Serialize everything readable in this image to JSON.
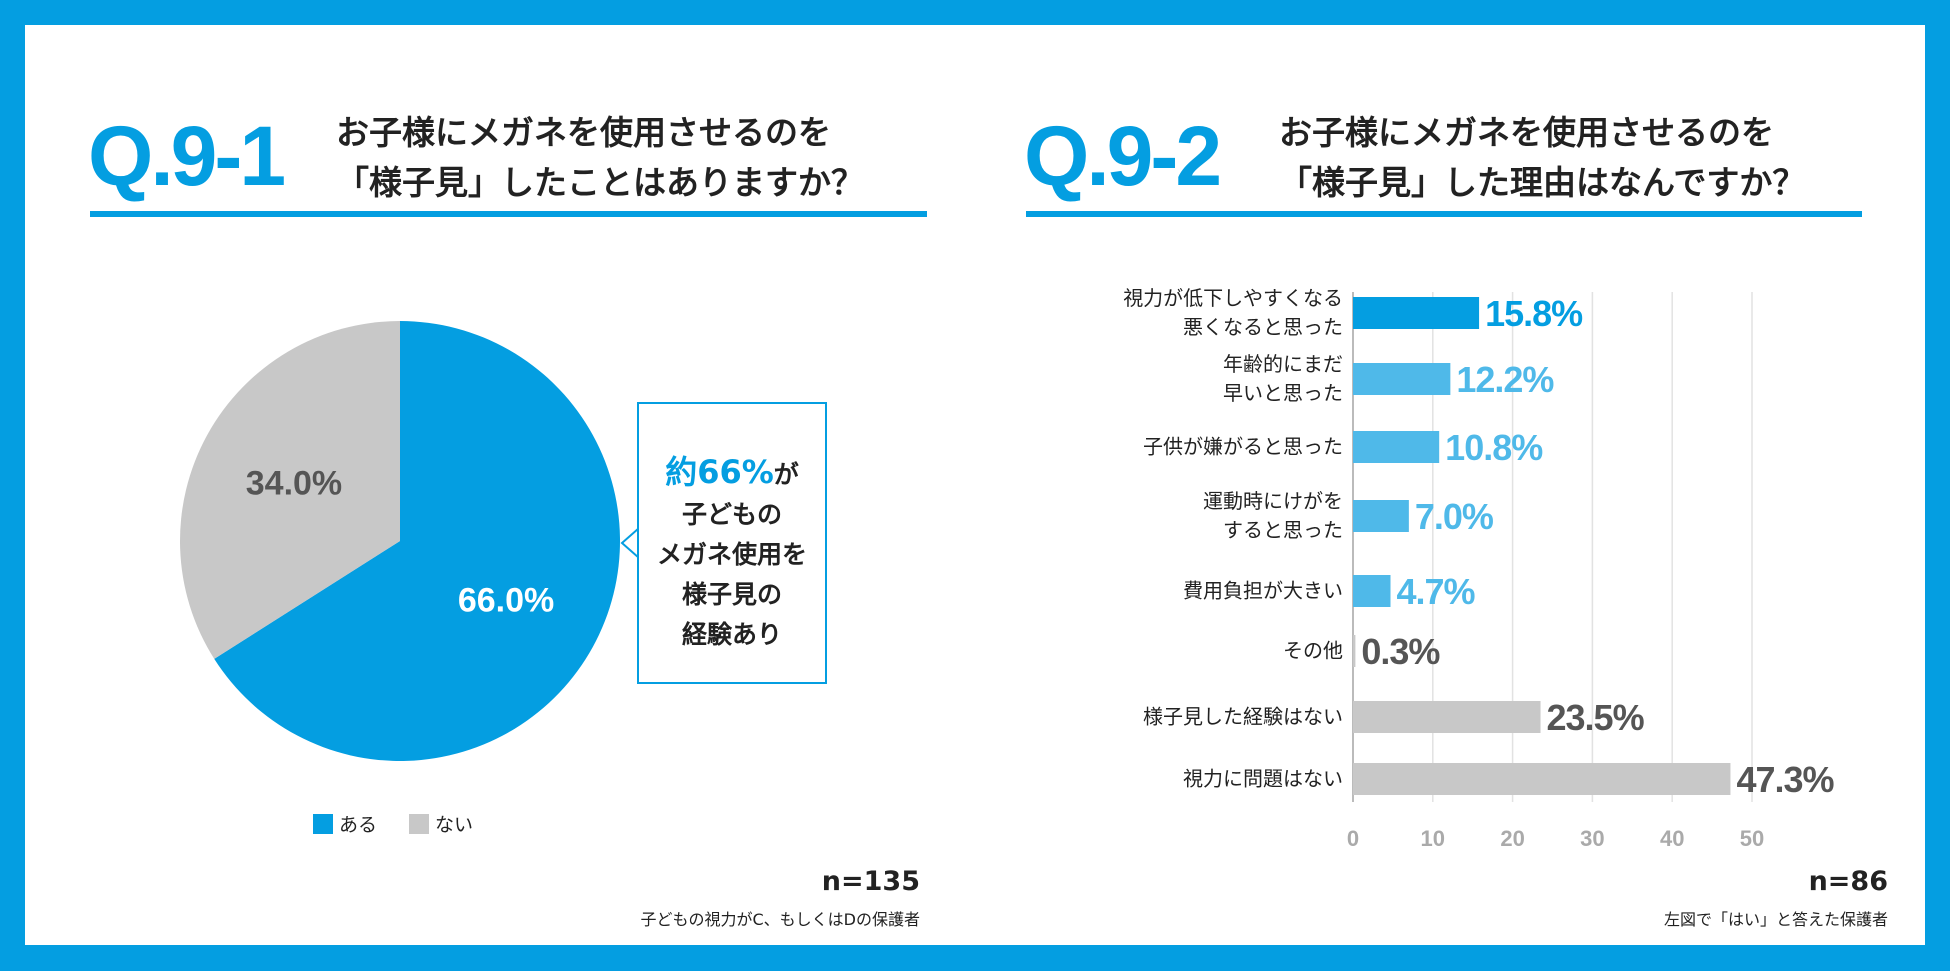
{
  "colors": {
    "accent": "#049ee1",
    "light": "#4fb9e9",
    "gray": "#c8c8c8",
    "grayText": "#555555"
  },
  "left": {
    "qnum": "Q.9-1",
    "title_line1": "お子様にメガネを使用させるのを",
    "title_line2": "「様子見」したことはありますか？",
    "n": "n=135",
    "sub": "子どもの視力がC、もしくはDの保護者",
    "callout": {
      "hl": "約66%",
      "hl_suffix": "が",
      "lines": [
        "子どもの",
        "メガネ使用を",
        "様子見の",
        "経験あり"
      ]
    }
  },
  "right": {
    "qnum": "Q.9-2",
    "title_line1": "お子様にメガネを使用させるのを",
    "title_line2": "「様子見」した理由はなんですか？",
    "n": "n=86",
    "sub": "左図で「はい」と答えた保護者"
  },
  "chart_data": [
    {
      "type": "pie",
      "labels": [
        "ある",
        "ない"
      ],
      "values": [
        66.0,
        34.0
      ],
      "value_labels": [
        "66.0%",
        "34.0%"
      ],
      "legend": "bottom"
    },
    {
      "type": "bar",
      "orientation": "horizontal",
      "categories": [
        "視力が低下しやすくなる\n悪くなると思った",
        "年齢的にまだ\n早いと思った",
        "子供が嫌がると思った",
        "運動時にけがを\nすると思った",
        "費用負担が大きい",
        "その他",
        "様子見した経験はない",
        "視力に問題はない"
      ],
      "values": [
        15.8,
        12.2,
        10.8,
        7.0,
        4.7,
        0.3,
        23.5,
        47.3
      ],
      "value_labels": [
        "15.8%",
        "12.2%",
        "10.8%",
        "7.0%",
        "4.7%",
        "0.3%",
        "23.5%",
        "47.3%"
      ],
      "xlim": [
        0,
        50
      ],
      "xticks": [
        "0",
        "10",
        "20",
        "30",
        "40",
        "50"
      ],
      "grid": true
    }
  ]
}
